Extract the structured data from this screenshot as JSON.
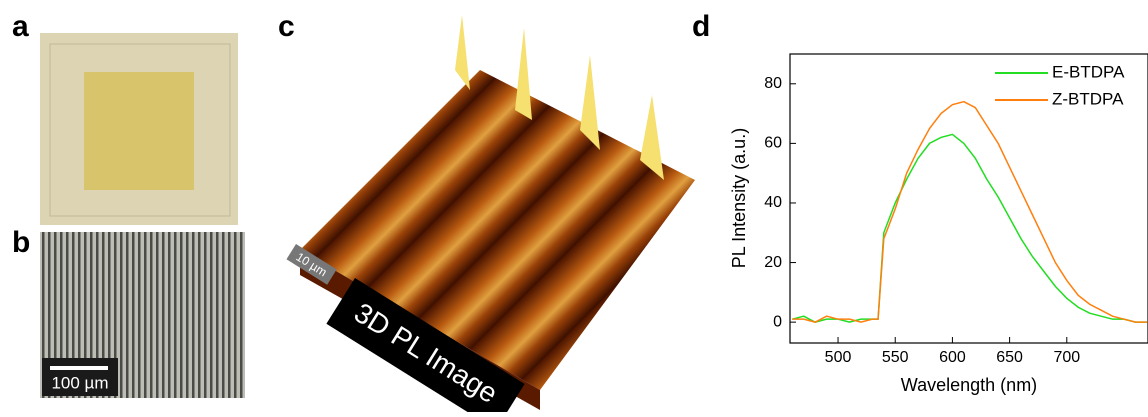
{
  "panels": {
    "a": {
      "label": "a"
    },
    "b": {
      "label": "b",
      "scale_bar": "100 µm"
    },
    "c": {
      "label": "c",
      "scale_bar": "10 µm",
      "overlay": "3D PL Image"
    },
    "d": {
      "label": "d"
    }
  },
  "chart_data": {
    "type": "line",
    "x_label": "Wavelength (nm)",
    "y_label": "PL Intensity (a.u.)",
    "x": [
      460,
      470,
      480,
      490,
      500,
      510,
      520,
      530,
      535,
      540,
      550,
      560,
      570,
      580,
      590,
      600,
      610,
      620,
      630,
      640,
      650,
      660,
      670,
      680,
      690,
      700,
      710,
      720,
      730,
      740,
      750,
      760,
      770
    ],
    "series": [
      {
        "name": "E-BTDPA",
        "color": "#22dd22",
        "values": [
          1,
          2,
          0,
          1,
          1,
          0,
          1,
          1,
          1,
          30,
          40,
          48,
          55,
          60,
          62,
          63,
          60,
          55,
          48,
          42,
          35,
          28,
          22,
          17,
          12,
          8,
          5,
          3,
          2,
          1,
          1,
          0,
          0
        ]
      },
      {
        "name": "Z-BTDPA",
        "color": "#ff7f0e",
        "values": [
          1,
          1,
          0,
          2,
          1,
          1,
          0,
          1,
          1,
          28,
          38,
          50,
          58,
          65,
          70,
          73,
          74,
          72,
          66,
          60,
          52,
          44,
          36,
          28,
          20,
          14,
          9,
          6,
          4,
          2,
          1,
          0,
          0
        ]
      }
    ],
    "xlim": [
      458,
      771
    ],
    "ylim": [
      -7,
      90
    ],
    "xticks": [
      500,
      550,
      600,
      650,
      700
    ],
    "yticks": [
      0,
      20,
      40,
      60,
      80
    ]
  }
}
